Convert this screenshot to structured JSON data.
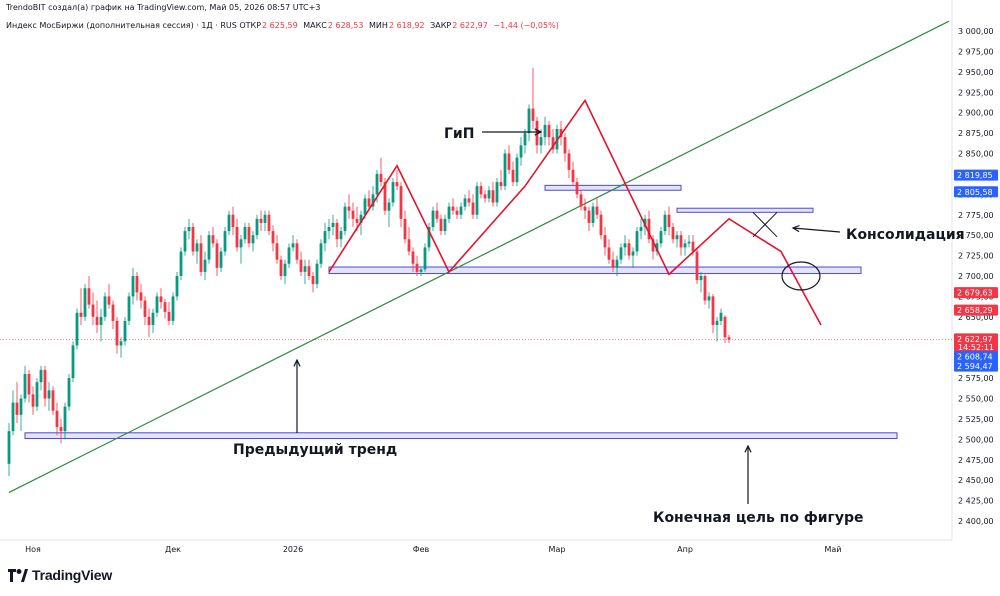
{
  "header": {
    "attribution": "TrendoBIT создал(а) график на TradingView.com, Май 05, 2026 08:57 UTC+3",
    "instrument": "Индекс МосБиржи (дополнительная сессия) · 1Д · RUS",
    "open_label": "ОТКР",
    "open": "2 625,59",
    "high_label": "МАКС",
    "high": "2 628,53",
    "low_label": "МИН",
    "low": "2 618,92",
    "close_label": "ЗАКР",
    "close": "2 622,97",
    "change": "−1,44 (−0,05%)"
  },
  "colors": {
    "up": "#089981",
    "down": "#f23645",
    "pattern": "#e0142c",
    "trendline": "#2e8b3a",
    "zone_fill": "#dcdcff",
    "zone_stroke": "#4a4ad6",
    "price_blue": "#2962ff"
  },
  "brand": {
    "name": "TradingView",
    "logo": "tradingview-logo-icon"
  },
  "chart_data": {
    "type": "candlestick",
    "y_axis": {
      "min": 2400,
      "max": 3000,
      "ticks": [
        "2 400,00",
        "2 425,00",
        "2 450,00",
        "2 475,00",
        "2 500,00",
        "2 525,00",
        "2 550,00",
        "2 575,00",
        "2 600,00",
        "2 625,00",
        "2 650,00",
        "2 675,00",
        "2 700,00",
        "2 725,00",
        "2 750,00",
        "2 775,00",
        "2 800,00",
        "2 825,00",
        "2 850,00",
        "2 875,00",
        "2 900,00",
        "2 925,00",
        "2 950,00",
        "2 975,00",
        "3 000,00"
      ]
    },
    "x_axis": {
      "labels": [
        {
          "label": "Ноя",
          "bar": 6
        },
        {
          "label": "Дек",
          "bar": 41
        },
        {
          "label": "2026",
          "bar": 71
        },
        {
          "label": "Фев",
          "bar": 103
        },
        {
          "label": "Мар",
          "bar": 137
        },
        {
          "label": "Апр",
          "bar": 169
        },
        {
          "label": "Май",
          "bar": 206
        }
      ]
    },
    "candles": [
      [
        2470,
        2520,
        2455,
        2510
      ],
      [
        2510,
        2560,
        2505,
        2545
      ],
      [
        2545,
        2570,
        2520,
        2530
      ],
      [
        2530,
        2555,
        2510,
        2550
      ],
      [
        2550,
        2590,
        2545,
        2580
      ],
      [
        2580,
        2585,
        2545,
        2555
      ],
      [
        2555,
        2565,
        2530,
        2540
      ],
      [
        2540,
        2575,
        2535,
        2570
      ],
      [
        2570,
        2590,
        2560,
        2585
      ],
      [
        2585,
        2590,
        2540,
        2550
      ],
      [
        2550,
        2570,
        2535,
        2560
      ],
      [
        2560,
        2565,
        2530,
        2535
      ],
      [
        2535,
        2545,
        2505,
        2515
      ],
      [
        2515,
        2525,
        2495,
        2510
      ],
      [
        2510,
        2545,
        2500,
        2540
      ],
      [
        2540,
        2580,
        2535,
        2575
      ],
      [
        2575,
        2620,
        2570,
        2615
      ],
      [
        2615,
        2660,
        2610,
        2655
      ],
      [
        2655,
        2685,
        2640,
        2650
      ],
      [
        2650,
        2690,
        2645,
        2685
      ],
      [
        2685,
        2700,
        2660,
        2665
      ],
      [
        2665,
        2680,
        2640,
        2650
      ],
      [
        2650,
        2670,
        2630,
        2640
      ],
      [
        2640,
        2660,
        2620,
        2650
      ],
      [
        2650,
        2680,
        2645,
        2675
      ],
      [
        2675,
        2690,
        2660,
        2665
      ],
      [
        2665,
        2670,
        2635,
        2645
      ],
      [
        2645,
        2650,
        2605,
        2615
      ],
      [
        2615,
        2625,
        2600,
        2620
      ],
      [
        2620,
        2650,
        2615,
        2645
      ],
      [
        2645,
        2680,
        2640,
        2675
      ],
      [
        2675,
        2710,
        2665,
        2700
      ],
      [
        2700,
        2705,
        2670,
        2680
      ],
      [
        2680,
        2690,
        2660,
        2670
      ],
      [
        2670,
        2675,
        2640,
        2650
      ],
      [
        2650,
        2660,
        2625,
        2640
      ],
      [
        2640,
        2660,
        2630,
        2655
      ],
      [
        2655,
        2680,
        2650,
        2675
      ],
      [
        2675,
        2685,
        2660,
        2668
      ],
      [
        2668,
        2672,
        2648,
        2656
      ],
      [
        2656,
        2668,
        2640,
        2645
      ],
      [
        2645,
        2680,
        2640,
        2675
      ],
      [
        2675,
        2705,
        2670,
        2700
      ],
      [
        2700,
        2735,
        2695,
        2730
      ],
      [
        2730,
        2760,
        2725,
        2755
      ],
      [
        2755,
        2770,
        2745,
        2760
      ],
      [
        2760,
        2765,
        2725,
        2730
      ],
      [
        2730,
        2745,
        2715,
        2740
      ],
      [
        2740,
        2750,
        2700,
        2705
      ],
      [
        2705,
        2730,
        2695,
        2720
      ],
      [
        2720,
        2755,
        2715,
        2750
      ],
      [
        2750,
        2760,
        2735,
        2740
      ],
      [
        2740,
        2745,
        2700,
        2710
      ],
      [
        2710,
        2735,
        2705,
        2730
      ],
      [
        2730,
        2760,
        2725,
        2755
      ],
      [
        2755,
        2780,
        2750,
        2775
      ],
      [
        2775,
        2785,
        2750,
        2760
      ],
      [
        2760,
        2770,
        2730,
        2735
      ],
      [
        2735,
        2750,
        2715,
        2745
      ],
      [
        2745,
        2765,
        2740,
        2760
      ],
      [
        2760,
        2765,
        2735,
        2740
      ],
      [
        2740,
        2755,
        2730,
        2750
      ],
      [
        2750,
        2775,
        2745,
        2770
      ],
      [
        2770,
        2780,
        2755,
        2765
      ],
      [
        2765,
        2780,
        2755,
        2775
      ],
      [
        2775,
        2780,
        2750,
        2755
      ],
      [
        2755,
        2762,
        2730,
        2740
      ],
      [
        2740,
        2750,
        2715,
        2720
      ],
      [
        2720,
        2725,
        2695,
        2700
      ],
      [
        2700,
        2720,
        2690,
        2715
      ],
      [
        2715,
        2740,
        2710,
        2735
      ],
      [
        2735,
        2750,
        2730,
        2740
      ],
      [
        2740,
        2745,
        2715,
        2720
      ],
      [
        2720,
        2730,
        2700,
        2705
      ],
      [
        2705,
        2720,
        2690,
        2712
      ],
      [
        2712,
        2720,
        2695,
        2700
      ],
      [
        2700,
        2705,
        2680,
        2690
      ],
      [
        2690,
        2720,
        2685,
        2715
      ],
      [
        2715,
        2745,
        2710,
        2740
      ],
      [
        2740,
        2765,
        2730,
        2755
      ],
      [
        2755,
        2770,
        2745,
        2760
      ],
      [
        2760,
        2775,
        2750,
        2765
      ],
      [
        2765,
        2770,
        2735,
        2745
      ],
      [
        2745,
        2760,
        2735,
        2755
      ],
      [
        2755,
        2790,
        2750,
        2785
      ],
      [
        2785,
        2800,
        2770,
        2780
      ],
      [
        2780,
        2790,
        2760,
        2770
      ],
      [
        2770,
        2785,
        2755,
        2765
      ],
      [
        2765,
        2780,
        2750,
        2775
      ],
      [
        2775,
        2800,
        2770,
        2795
      ],
      [
        2795,
        2805,
        2780,
        2785
      ],
      [
        2785,
        2810,
        2780,
        2800
      ],
      [
        2800,
        2830,
        2790,
        2825
      ],
      [
        2825,
        2845,
        2810,
        2815
      ],
      [
        2815,
        2820,
        2775,
        2780
      ],
      [
        2780,
        2795,
        2760,
        2790
      ],
      [
        2790,
        2820,
        2785,
        2815
      ],
      [
        2815,
        2830,
        2805,
        2810
      ],
      [
        2810,
        2815,
        2760,
        2770
      ],
      [
        2770,
        2780,
        2740,
        2745
      ],
      [
        2745,
        2760,
        2725,
        2730
      ],
      [
        2730,
        2735,
        2705,
        2715
      ],
      [
        2715,
        2725,
        2700,
        2705
      ],
      [
        2705,
        2710,
        2700,
        2708
      ],
      [
        2708,
        2740,
        2705,
        2735
      ],
      [
        2735,
        2765,
        2730,
        2760
      ],
      [
        2760,
        2785,
        2755,
        2780
      ],
      [
        2780,
        2790,
        2765,
        2770
      ],
      [
        2770,
        2775,
        2750,
        2755
      ],
      [
        2755,
        2775,
        2750,
        2770
      ],
      [
        2770,
        2790,
        2765,
        2785
      ],
      [
        2785,
        2795,
        2775,
        2780
      ],
      [
        2780,
        2785,
        2770,
        2775
      ],
      [
        2775,
        2790,
        2770,
        2785
      ],
      [
        2785,
        2800,
        2780,
        2795
      ],
      [
        2795,
        2805,
        2785,
        2790
      ],
      [
        2790,
        2800,
        2770,
        2775
      ],
      [
        2775,
        2815,
        2770,
        2810
      ],
      [
        2810,
        2815,
        2795,
        2800
      ],
      [
        2800,
        2805,
        2790,
        2795
      ],
      [
        2795,
        2810,
        2790,
        2805
      ],
      [
        2805,
        2815,
        2785,
        2790
      ],
      [
        2790,
        2820,
        2785,
        2815
      ],
      [
        2815,
        2830,
        2805,
        2810
      ],
      [
        2810,
        2855,
        2805,
        2850
      ],
      [
        2850,
        2860,
        2825,
        2830
      ],
      [
        2830,
        2840,
        2810,
        2815
      ],
      [
        2815,
        2850,
        2810,
        2845
      ],
      [
        2845,
        2870,
        2835,
        2860
      ],
      [
        2860,
        2880,
        2850,
        2875
      ],
      [
        2875,
        2910,
        2865,
        2905
      ],
      [
        2905,
        2955,
        2880,
        2890
      ],
      [
        2890,
        2895,
        2850,
        2860
      ],
      [
        2860,
        2880,
        2850,
        2870
      ],
      [
        2870,
        2895,
        2860,
        2885
      ],
      [
        2885,
        2890,
        2860,
        2870
      ],
      [
        2870,
        2880,
        2850,
        2855
      ],
      [
        2855,
        2885,
        2850,
        2880
      ],
      [
        2880,
        2890,
        2860,
        2870
      ],
      [
        2870,
        2875,
        2840,
        2850
      ],
      [
        2850,
        2855,
        2820,
        2830
      ],
      [
        2830,
        2840,
        2810,
        2815
      ],
      [
        2815,
        2820,
        2795,
        2800
      ],
      [
        2800,
        2805,
        2780,
        2785
      ],
      [
        2785,
        2795,
        2770,
        2780
      ],
      [
        2780,
        2785,
        2755,
        2765
      ],
      [
        2765,
        2790,
        2760,
        2785
      ],
      [
        2785,
        2795,
        2770,
        2775
      ],
      [
        2775,
        2780,
        2745,
        2750
      ],
      [
        2750,
        2760,
        2725,
        2735
      ],
      [
        2735,
        2745,
        2715,
        2720
      ],
      [
        2720,
        2730,
        2705,
        2710
      ],
      [
        2710,
        2725,
        2700,
        2720
      ],
      [
        2720,
        2740,
        2715,
        2735
      ],
      [
        2735,
        2750,
        2725,
        2740
      ],
      [
        2740,
        2745,
        2720,
        2725
      ],
      [
        2725,
        2735,
        2710,
        2730
      ],
      [
        2730,
        2760,
        2725,
        2755
      ],
      [
        2755,
        2770,
        2745,
        2760
      ],
      [
        2760,
        2775,
        2750,
        2770
      ],
      [
        2770,
        2780,
        2740,
        2745
      ],
      [
        2745,
        2750,
        2720,
        2730
      ],
      [
        2730,
        2745,
        2725,
        2740
      ],
      [
        2740,
        2760,
        2735,
        2755
      ],
      [
        2755,
        2780,
        2750,
        2775
      ],
      [
        2775,
        2785,
        2750,
        2760
      ],
      [
        2760,
        2765,
        2740,
        2745
      ],
      [
        2745,
        2755,
        2735,
        2750
      ],
      [
        2750,
        2755,
        2725,
        2735
      ],
      [
        2735,
        2745,
        2725,
        2740
      ],
      [
        2740,
        2750,
        2735,
        2742
      ],
      [
        2742,
        2750,
        2725,
        2730
      ],
      [
        2730,
        2735,
        2690,
        2695
      ],
      [
        2695,
        2705,
        2680,
        2700
      ],
      [
        2700,
        2702,
        2665,
        2670
      ],
      [
        2670,
        2680,
        2660,
        2675
      ],
      [
        2675,
        2678,
        2630,
        2640
      ],
      [
        2640,
        2650,
        2620,
        2645
      ],
      [
        2645,
        2660,
        2640,
        2655
      ],
      [
        2650,
        2652,
        2618,
        2625
      ],
      [
        2625,
        2628,
        2618,
        2622
      ]
    ],
    "annotations": {
      "head_shoulders": "ГиП",
      "consolidation": "Консолидация",
      "previous_trend": "Предыдущий тренд",
      "target": "Конечная цель по фигуре"
    },
    "price_labels": [
      {
        "value": 2819.85,
        "text": "2 819,85",
        "color": "blue"
      },
      {
        "value": 2805.58,
        "text": "2 805,58",
        "color": "blue"
      },
      {
        "value": 2679.63,
        "text": "2 679,63",
        "color": "red"
      },
      {
        "value": 2658.29,
        "text": "2 658,29",
        "color": "red"
      },
      {
        "value": 2622.97,
        "text": "2 622,97",
        "color": "red",
        "sub": "14:52:11"
      },
      {
        "value": 2608.74,
        "text": "2 608,74",
        "color": "blue"
      },
      {
        "value": 2594.47,
        "text": "2 594,47",
        "color": "blue"
      }
    ]
  }
}
